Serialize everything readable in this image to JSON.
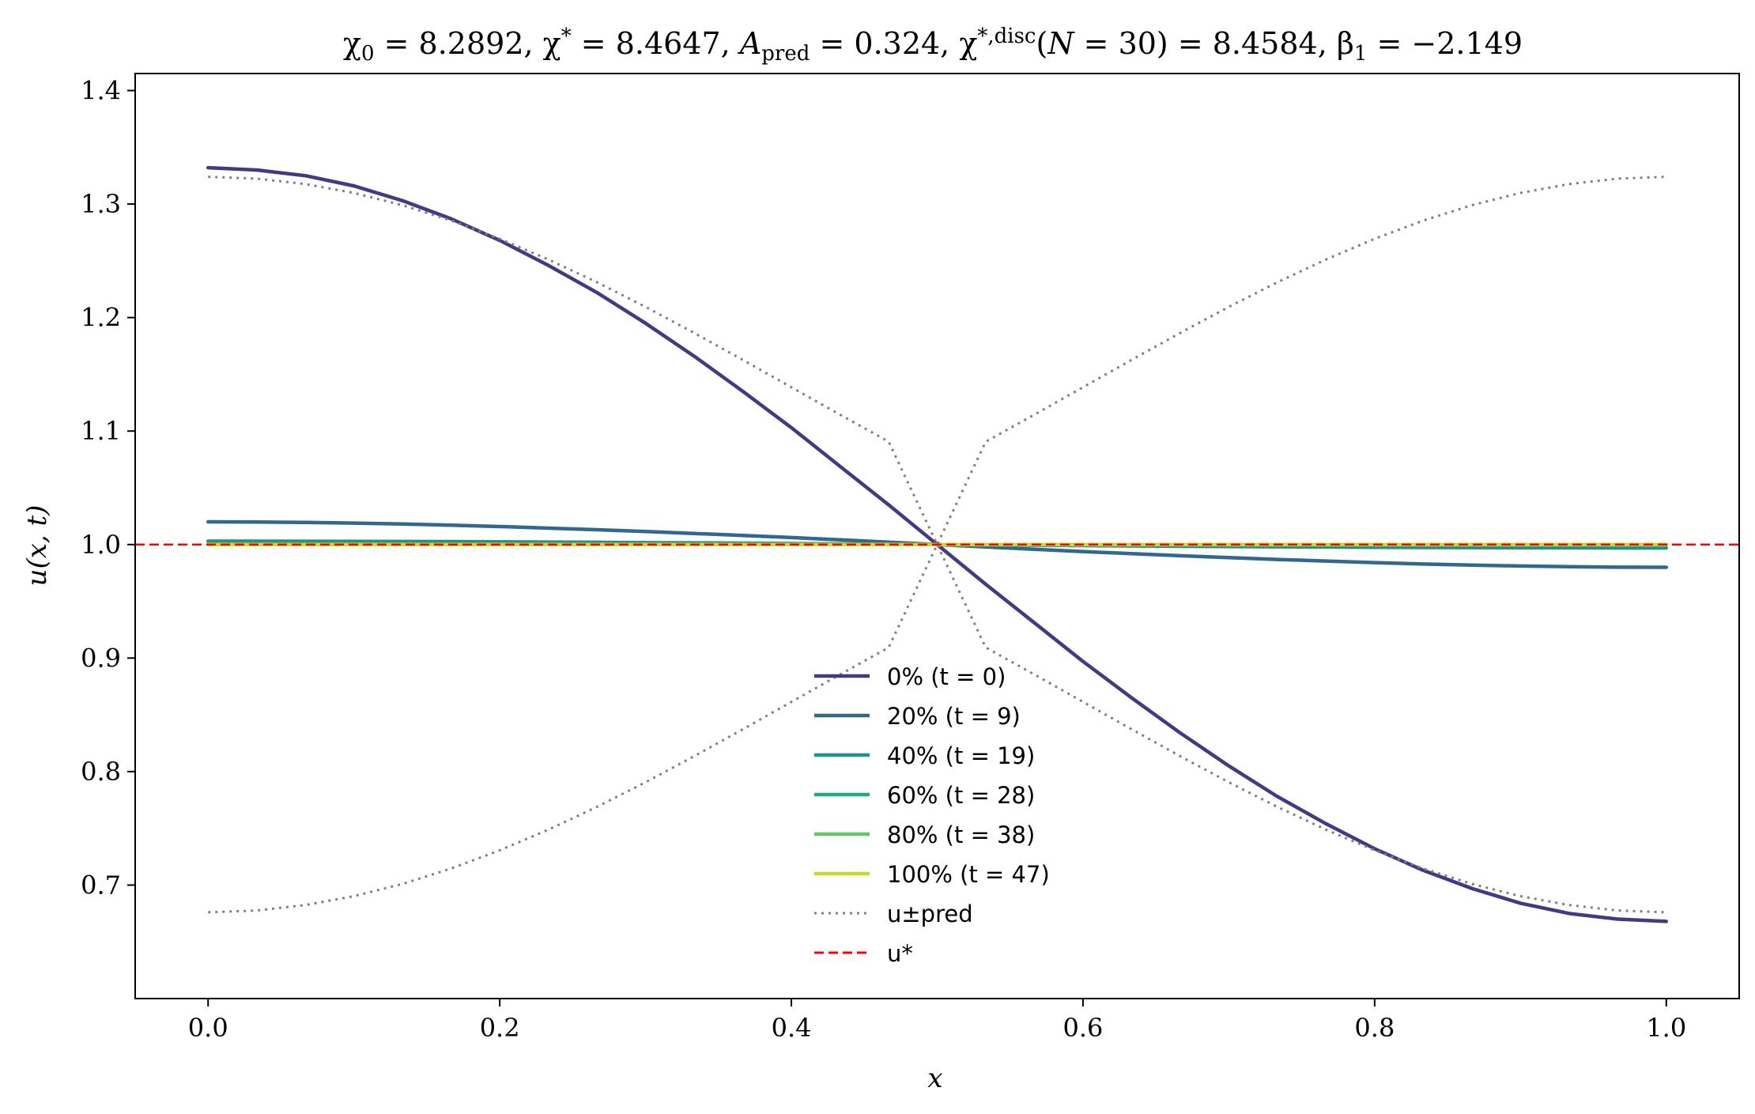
{
  "chart_data": {
    "type": "line",
    "title": "χ₀ = 8.2892,  χ* = 8.4647,  A_pred = 0.324,  χ*,disc(N = 30) = 8.4584,  β₁ = −2.149",
    "xlabel": "x",
    "ylabel": "u(x, t)",
    "xlim": [
      -0.05,
      1.05
    ],
    "ylim": [
      0.6,
      1.415
    ],
    "xticks": [
      "0.0",
      "0.2",
      "0.4",
      "0.6",
      "0.8",
      "1.0"
    ],
    "yticks": [
      "0.7",
      "0.8",
      "0.9",
      "1.0",
      "1.1",
      "1.2",
      "1.3",
      "1.4"
    ],
    "grid": false,
    "legend_position": "lower-center",
    "x": [
      0.0,
      0.0333,
      0.0667,
      0.1,
      0.1333,
      0.1667,
      0.2,
      0.2333,
      0.2667,
      0.3,
      0.3333,
      0.3667,
      0.4,
      0.4333,
      0.4667,
      0.5,
      0.5333,
      0.5667,
      0.6,
      0.6333,
      0.6667,
      0.7,
      0.7333,
      0.7667,
      0.8,
      0.8333,
      0.8667,
      0.9,
      0.9333,
      0.9667,
      1.0
    ],
    "series": [
      {
        "name": "0% (t = 0)",
        "color": "#443983",
        "style": "solid",
        "values": [
          1.332,
          1.33,
          1.325,
          1.316,
          1.303,
          1.287,
          1.268,
          1.246,
          1.222,
          1.195,
          1.166,
          1.135,
          1.103,
          1.069,
          1.035,
          1.0,
          0.965,
          0.931,
          0.897,
          0.865,
          0.834,
          0.805,
          0.778,
          0.754,
          0.732,
          0.713,
          0.697,
          0.684,
          0.675,
          0.67,
          0.668
        ]
      },
      {
        "name": "20% (t = 9)",
        "color": "#31688e",
        "style": "solid",
        "values": [
          1.02,
          1.0199,
          1.0195,
          1.0189,
          1.0181,
          1.0171,
          1.0159,
          1.0145,
          1.0131,
          1.0115,
          1.0098,
          1.008,
          1.0062,
          1.0042,
          1.0021,
          1.0,
          0.9979,
          0.9958,
          0.9938,
          0.992,
          0.9902,
          0.9885,
          0.9869,
          0.9855,
          0.9841,
          0.9829,
          0.9819,
          0.9811,
          0.9805,
          0.9801,
          0.98
        ]
      },
      {
        "name": "40% (t = 19)",
        "color": "#21918c",
        "style": "solid",
        "values": [
          1.003,
          1.003,
          1.0029,
          1.0028,
          1.0027,
          1.0026,
          1.0024,
          1.0022,
          1.002,
          1.0017,
          1.0015,
          1.0012,
          1.0009,
          1.0006,
          1.0003,
          1.0,
          0.9997,
          0.9994,
          0.9991,
          0.9988,
          0.9985,
          0.9983,
          0.998,
          0.9978,
          0.9976,
          0.9974,
          0.9973,
          0.9972,
          0.9971,
          0.997,
          0.997
        ]
      },
      {
        "name": "60% (t = 28)",
        "color": "#22a884",
        "style": "solid",
        "values": [
          1.0005,
          1.0005,
          1.0005,
          1.0005,
          1.0004,
          1.0004,
          1.0004,
          1.0003,
          1.0003,
          1.0003,
          1.0002,
          1.0002,
          1.0001,
          1.0001,
          1.0001,
          1.0,
          0.9999,
          0.9999,
          0.9999,
          0.9998,
          0.9998,
          0.9997,
          0.9997,
          0.9997,
          0.9996,
          0.9996,
          0.9996,
          0.9995,
          0.9995,
          0.9995,
          0.9995
        ]
      },
      {
        "name": "80% (t = 38)",
        "color": "#5ec962",
        "style": "solid",
        "values": [
          1.0,
          1.0,
          1.0,
          1.0,
          1.0,
          1.0,
          1.0,
          1.0,
          1.0,
          1.0,
          1.0,
          1.0,
          1.0,
          1.0,
          1.0,
          1.0,
          1.0,
          1.0,
          1.0,
          1.0,
          1.0,
          1.0,
          1.0,
          1.0,
          1.0,
          1.0,
          1.0,
          1.0,
          1.0,
          1.0,
          1.0
        ]
      },
      {
        "name": "100% (t = 47)",
        "color": "#bddf26",
        "style": "solid",
        "values": [
          1.0,
          1.0,
          1.0,
          1.0,
          1.0,
          1.0,
          1.0,
          1.0,
          1.0,
          1.0,
          1.0,
          1.0,
          1.0,
          1.0,
          1.0,
          1.0,
          1.0,
          1.0,
          1.0,
          1.0,
          1.0,
          1.0,
          1.0,
          1.0,
          1.0,
          1.0,
          1.0,
          1.0,
          1.0,
          1.0,
          1.0
        ]
      },
      {
        "name": "u±pred",
        "color": "#808080",
        "style": "dotted",
        "values": [
          1.324,
          1.3224,
          1.3176,
          1.3098,
          1.299,
          1.2854,
          1.2694,
          1.2512,
          1.2311,
          1.2094,
          1.1865,
          1.1627,
          1.1386,
          1.1145,
          1.0907,
          1.0,
          0.9093,
          0.8855,
          0.8614,
          0.8373,
          0.8135,
          0.7906,
          0.7689,
          0.7488,
          0.7306,
          0.7146,
          0.701,
          0.6902,
          0.6824,
          0.6776,
          0.676
        ]
      },
      {
        "name": "",
        "color": "#808080",
        "style": "dotted",
        "values": [
          0.676,
          0.6776,
          0.6824,
          0.6902,
          0.701,
          0.7146,
          0.7306,
          0.7488,
          0.7689,
          0.7906,
          0.8135,
          0.8373,
          0.8614,
          0.8855,
          0.9093,
          1.0,
          1.0907,
          1.1145,
          1.1386,
          1.1627,
          1.1865,
          1.2094,
          1.2311,
          1.2512,
          1.2694,
          1.2854,
          1.299,
          1.3098,
          1.3176,
          1.3224,
          1.324
        ]
      }
    ],
    "hline": {
      "name": "u*",
      "y": 1.0,
      "color": "#ff0000",
      "style": "dashed"
    }
  }
}
